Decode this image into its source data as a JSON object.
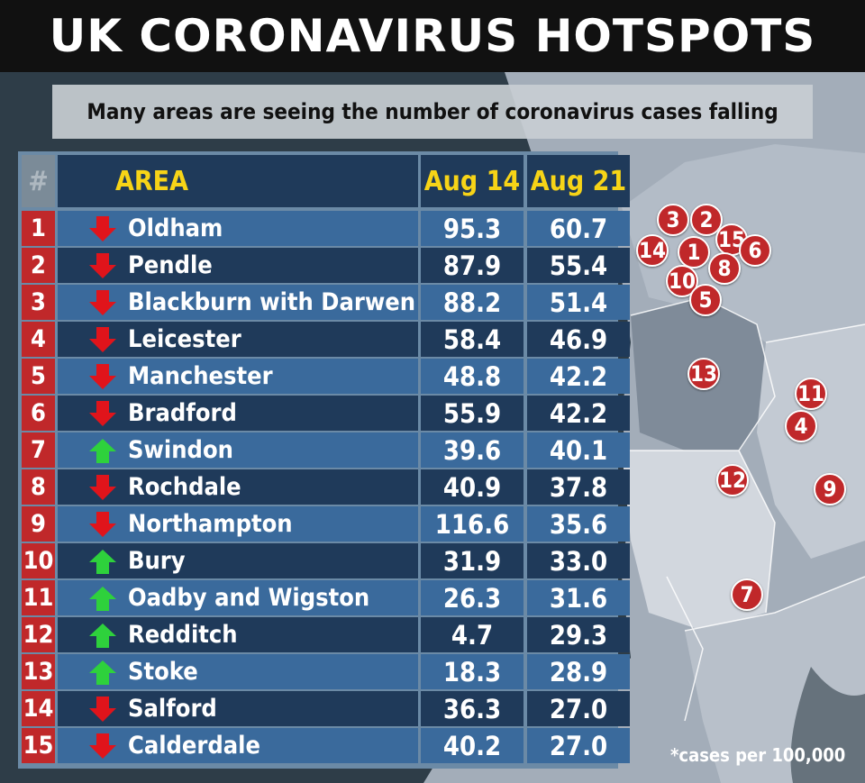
{
  "title": "UK CORONAVIRUS HOTSPOTS",
  "subtitle": "Many areas are seeing the number of coronavirus cases falling",
  "table": {
    "headers": {
      "rank": "#",
      "area": "AREA",
      "col1": "Aug 14",
      "col2": "Aug 21"
    },
    "rows": [
      {
        "rank": "1",
        "area": "Oldham",
        "aug14": "95.3",
        "aug21": "60.7",
        "trend": "down"
      },
      {
        "rank": "2",
        "area": "Pendle",
        "aug14": "87.9",
        "aug21": "55.4",
        "trend": "down"
      },
      {
        "rank": "3",
        "area": "Blackburn with Darwen",
        "aug14": "88.2",
        "aug21": "51.4",
        "trend": "down"
      },
      {
        "rank": "4",
        "area": "Leicester",
        "aug14": "58.4",
        "aug21": "46.9",
        "trend": "down"
      },
      {
        "rank": "5",
        "area": "Manchester",
        "aug14": "48.8",
        "aug21": "42.2",
        "trend": "down"
      },
      {
        "rank": "6",
        "area": "Bradford",
        "aug14": "55.9",
        "aug21": "42.2",
        "trend": "down"
      },
      {
        "rank": "7",
        "area": "Swindon",
        "aug14": "39.6",
        "aug21": "40.1",
        "trend": "up"
      },
      {
        "rank": "8",
        "area": "Rochdale",
        "aug14": "40.9",
        "aug21": "37.8",
        "trend": "down"
      },
      {
        "rank": "9",
        "area": "Northampton",
        "aug14": "116.6",
        "aug21": "35.6",
        "trend": "down"
      },
      {
        "rank": "10",
        "area": "Bury",
        "aug14": "31.9",
        "aug21": "33.0",
        "trend": "up"
      },
      {
        "rank": "11",
        "area": "Oadby and Wigston",
        "aug14": "26.3",
        "aug21": "31.6",
        "trend": "up"
      },
      {
        "rank": "12",
        "area": "Redditch",
        "aug14": "4.7",
        "aug21": "29.3",
        "trend": "up"
      },
      {
        "rank": "13",
        "area": "Stoke",
        "aug14": "18.3",
        "aug21": "28.9",
        "trend": "up"
      },
      {
        "rank": "14",
        "area": "Salford",
        "aug14": "36.3",
        "aug21": "27.0",
        "trend": "down"
      },
      {
        "rank": "15",
        "area": "Calderdale",
        "aug14": "40.2",
        "aug21": "27.0",
        "trend": "down"
      }
    ]
  },
  "map_markers": [
    "3",
    "2",
    "15",
    "6",
    "14",
    "1",
    "8",
    "10",
    "5",
    "13",
    "11",
    "4",
    "12",
    "9",
    "7"
  ],
  "footnote": "*cases per 100,000",
  "colors": {
    "up_arrow": "#2ed13c",
    "down_arrow": "#e0141b",
    "marker": "#c0282a",
    "header_text": "#f7d417"
  }
}
